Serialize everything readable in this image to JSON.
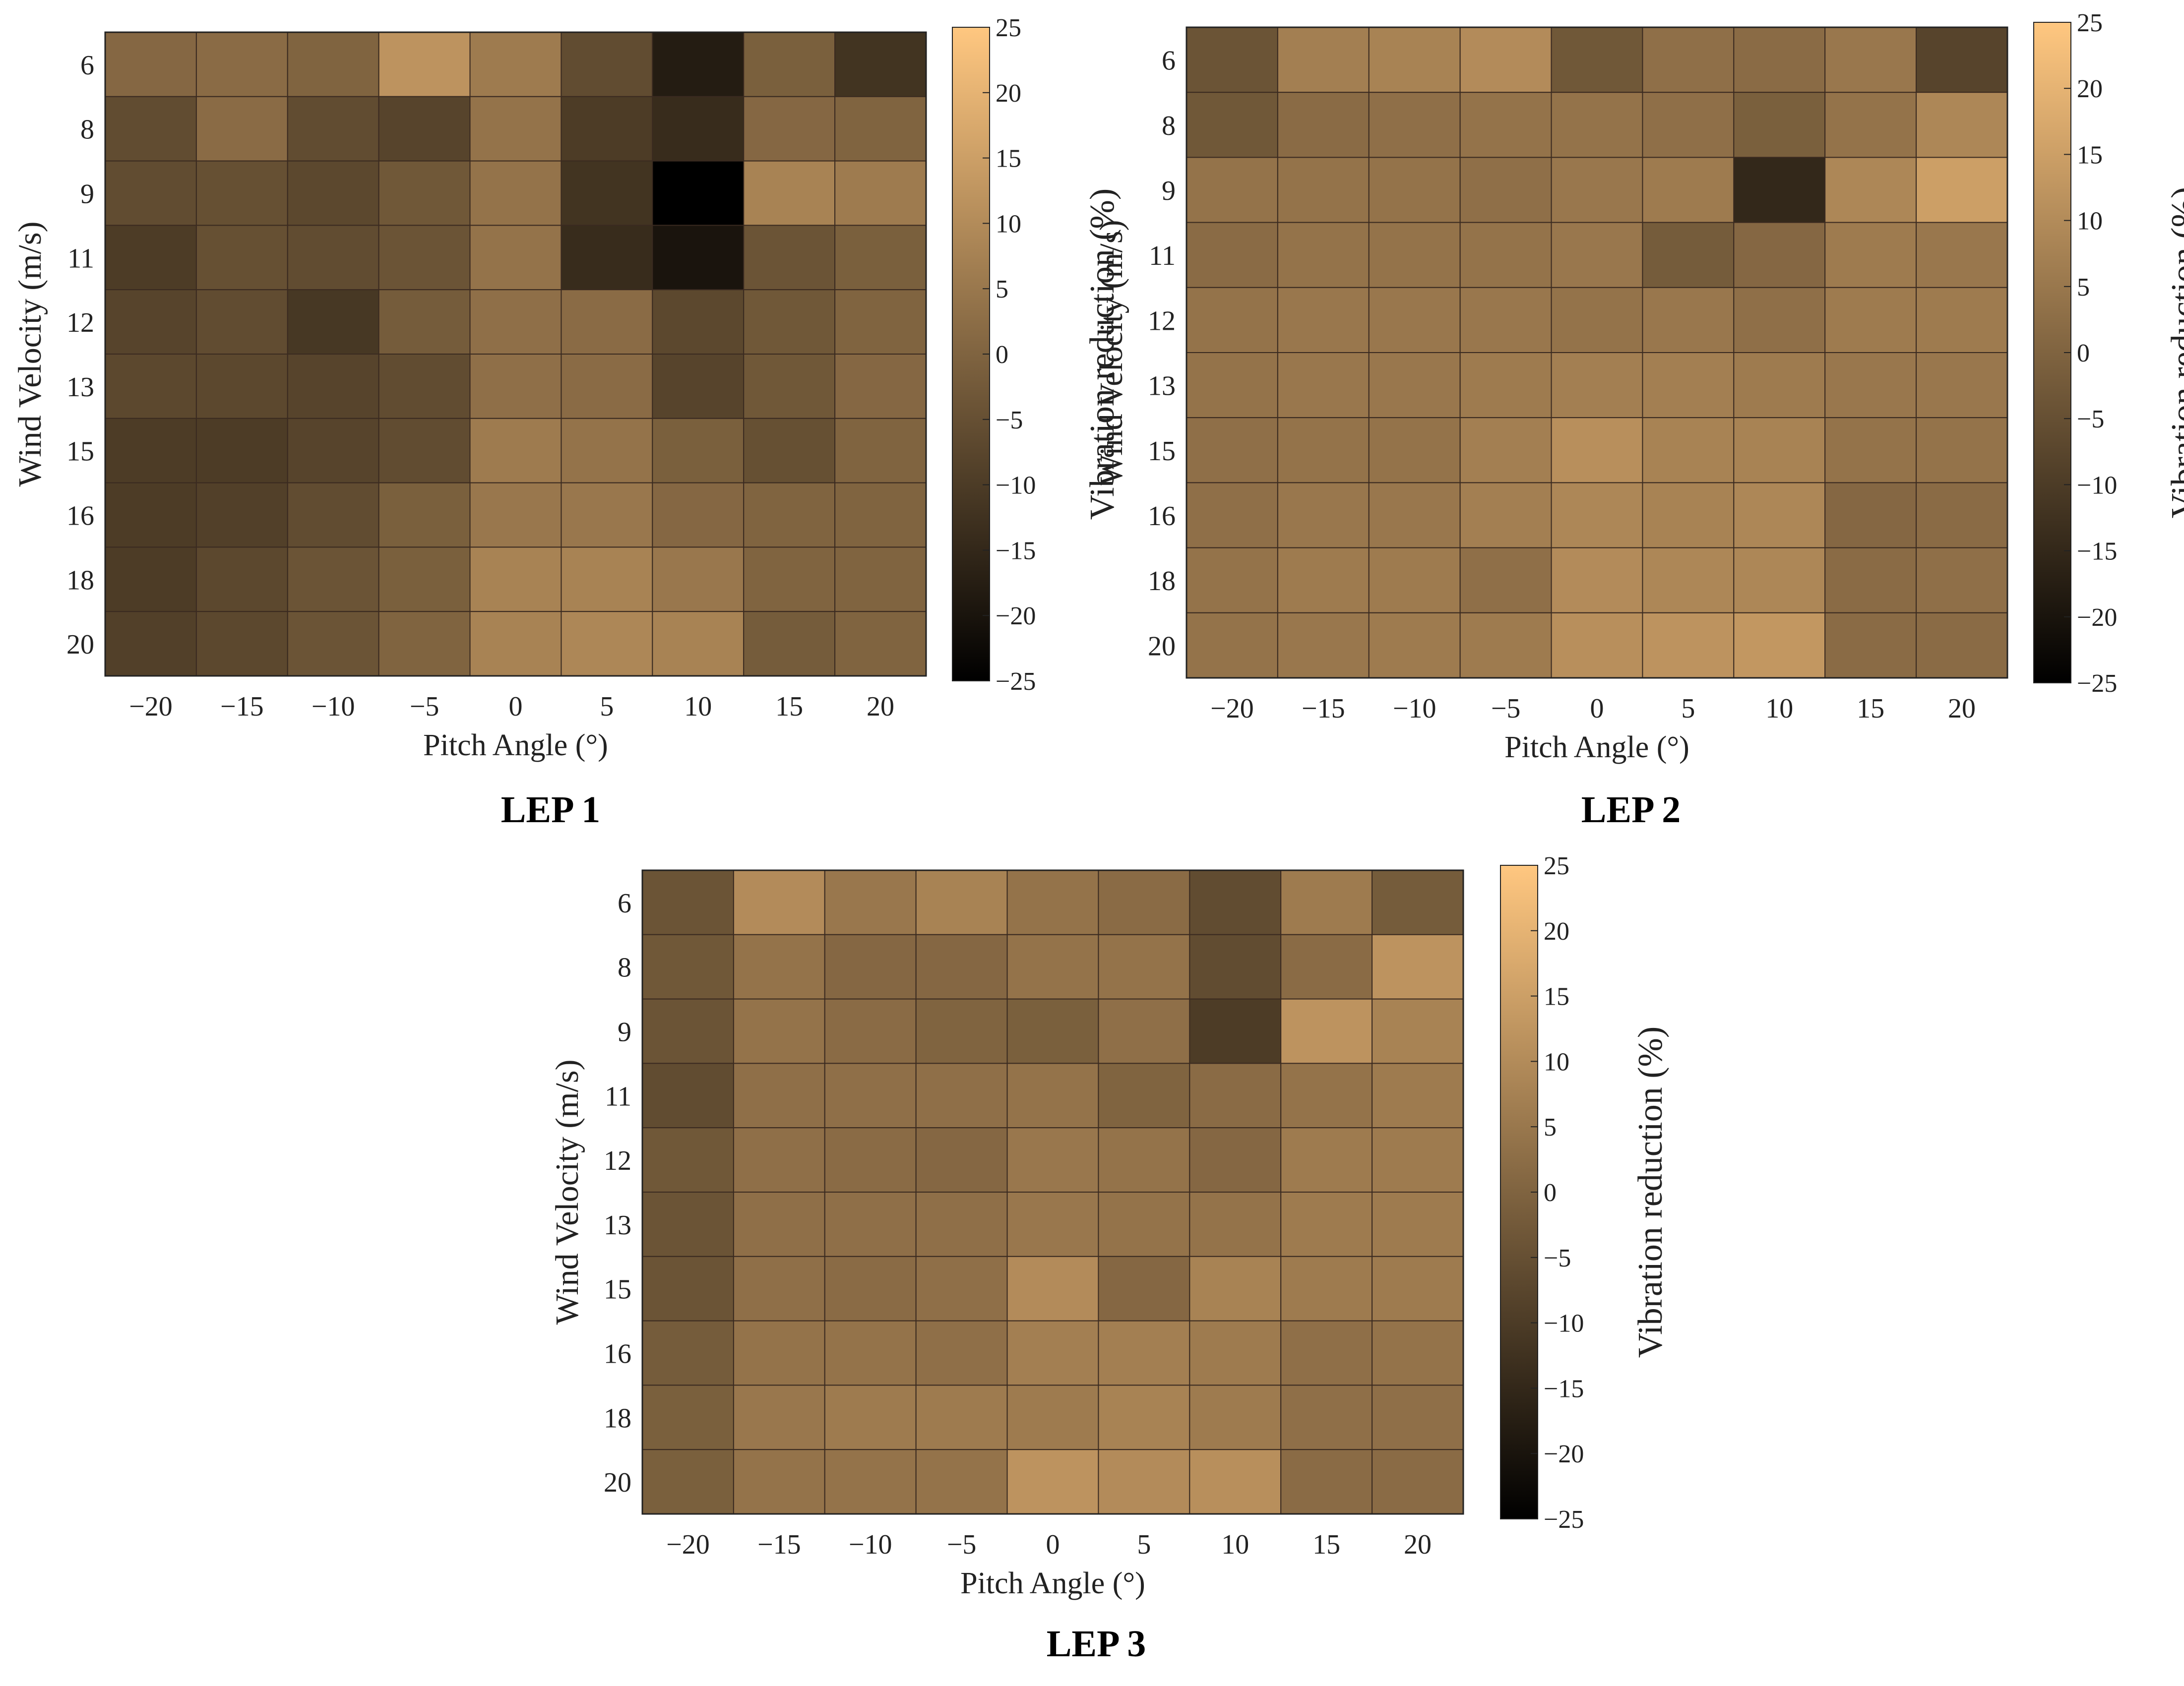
{
  "figure": {
    "captions": [
      "LEP 1",
      "LEP 2",
      "LEP 3"
    ]
  },
  "colormap": {
    "low": "#000000",
    "high": "#ffc780",
    "name": "copper"
  },
  "chart_data": [
    {
      "type": "heatmap",
      "title": "LEP 1",
      "xlabel": "Pitch Angle (°)",
      "ylabel": "Wind Velocity (m/s)",
      "colorbar_label": "Vibration reduction (%)",
      "x": [
        "−20",
        "−15",
        "−10",
        "−5",
        "0",
        "5",
        "10",
        "15",
        "20"
      ],
      "y": [
        "6",
        "8",
        "9",
        "11",
        "12",
        "13",
        "15",
        "16",
        "18",
        "20"
      ],
      "clim": [
        -25,
        25
      ],
      "colorbar_ticks": [
        "25",
        "20",
        "15",
        "10",
        "5",
        "0",
        "−5",
        "−10",
        "−15",
        "−20",
        "−25"
      ],
      "values": [
        [
          1,
          2,
          0,
          12,
          6,
          -6,
          -18,
          -1,
          -12
        ],
        [
          -6,
          2,
          -6,
          -8,
          4,
          -10,
          -14,
          1,
          0
        ],
        [
          -6,
          -5,
          -7,
          -3,
          4,
          -12,
          -25,
          8,
          6
        ],
        [
          -10,
          -5,
          -6,
          -4,
          4,
          -14,
          -20,
          -4,
          -1
        ],
        [
          -8,
          -6,
          -11,
          -2,
          3,
          2,
          -7,
          -3,
          0
        ],
        [
          -7,
          -7,
          -8,
          -6,
          3,
          2,
          -8,
          -3,
          1
        ],
        [
          -10,
          -10,
          -8,
          -6,
          6,
          4,
          -1,
          -5,
          0
        ],
        [
          -10,
          -9,
          -6,
          -1,
          5,
          5,
          1,
          0,
          0
        ],
        [
          -10,
          -7,
          -4,
          -1,
          8,
          8,
          5,
          0,
          0
        ],
        [
          -9,
          -7,
          -4,
          0,
          8,
          9,
          8,
          -2,
          0
        ]
      ]
    },
    {
      "type": "heatmap",
      "title": "LEP 2",
      "xlabel": "Pitch Angle (°)",
      "ylabel": "Wind Velocity (m/s)",
      "colorbar_label": "Vibration reduction (%)",
      "x": [
        "−20",
        "−15",
        "−10",
        "−5",
        "0",
        "5",
        "10",
        "15",
        "20"
      ],
      "y": [
        "6",
        "8",
        "9",
        "11",
        "12",
        "13",
        "15",
        "16",
        "18",
        "20"
      ],
      "clim": [
        -25,
        25
      ],
      "colorbar_ticks": [
        "25",
        "20",
        "15",
        "10",
        "5",
        "0",
        "−5",
        "−10",
        "−15",
        "−20",
        "−25"
      ],
      "values": [
        [
          -4,
          7,
          8,
          10,
          -3,
          3,
          2,
          5,
          -8
        ],
        [
          -3,
          2,
          3,
          4,
          4,
          3,
          -1,
          4,
          9
        ],
        [
          4,
          4,
          4,
          3,
          5,
          6,
          -15,
          9,
          15
        ],
        [
          2,
          4,
          4,
          4,
          5,
          -2,
          1,
          6,
          5
        ],
        [
          4,
          5,
          5,
          5,
          4,
          5,
          3,
          6,
          6
        ],
        [
          4,
          5,
          5,
          6,
          7,
          7,
          6,
          5,
          5
        ],
        [
          3,
          4,
          4,
          7,
          11,
          8,
          8,
          4,
          4
        ],
        [
          3,
          5,
          5,
          7,
          9,
          8,
          9,
          1,
          2
        ],
        [
          4,
          6,
          6,
          3,
          10,
          9,
          9,
          2,
          3
        ],
        [
          4,
          5,
          6,
          6,
          11,
          12,
          13,
          2,
          2
        ]
      ]
    },
    {
      "type": "heatmap",
      "title": "LEP 3",
      "xlabel": "Pitch Angle (°)",
      "ylabel": "Wind Velocity (m/s)",
      "colorbar_label": "Vibration reduction (%)",
      "x": [
        "−20",
        "−15",
        "−10",
        "−5",
        "0",
        "5",
        "10",
        "15",
        "20"
      ],
      "y": [
        "6",
        "8",
        "9",
        "11",
        "12",
        "13",
        "15",
        "16",
        "18",
        "20"
      ],
      "clim": [
        -25,
        25
      ],
      "colorbar_ticks": [
        "25",
        "20",
        "15",
        "10",
        "5",
        "0",
        "−5",
        "−10",
        "−15",
        "−20",
        "−25"
      ],
      "values": [
        [
          -4,
          10,
          5,
          8,
          4,
          2,
          -6,
          6,
          -2
        ],
        [
          -3,
          4,
          1,
          1,
          4,
          4,
          -6,
          2,
          12
        ],
        [
          -4,
          4,
          2,
          0,
          -1,
          3,
          -10,
          12,
          8
        ],
        [
          -6,
          3,
          3,
          3,
          4,
          0,
          2,
          4,
          6
        ],
        [
          -3,
          3,
          2,
          1,
          5,
          4,
          1,
          6,
          6
        ],
        [
          -4,
          3,
          3,
          3,
          5,
          4,
          4,
          6,
          6
        ],
        [
          -4,
          3,
          2,
          3,
          10,
          1,
          8,
          6,
          6
        ],
        [
          -2,
          4,
          4,
          3,
          7,
          7,
          6,
          3,
          4
        ],
        [
          -1,
          5,
          6,
          6,
          6,
          8,
          6,
          3,
          3
        ],
        [
          -1,
          4,
          4,
          4,
          12,
          10,
          11,
          2,
          2
        ]
      ]
    }
  ]
}
